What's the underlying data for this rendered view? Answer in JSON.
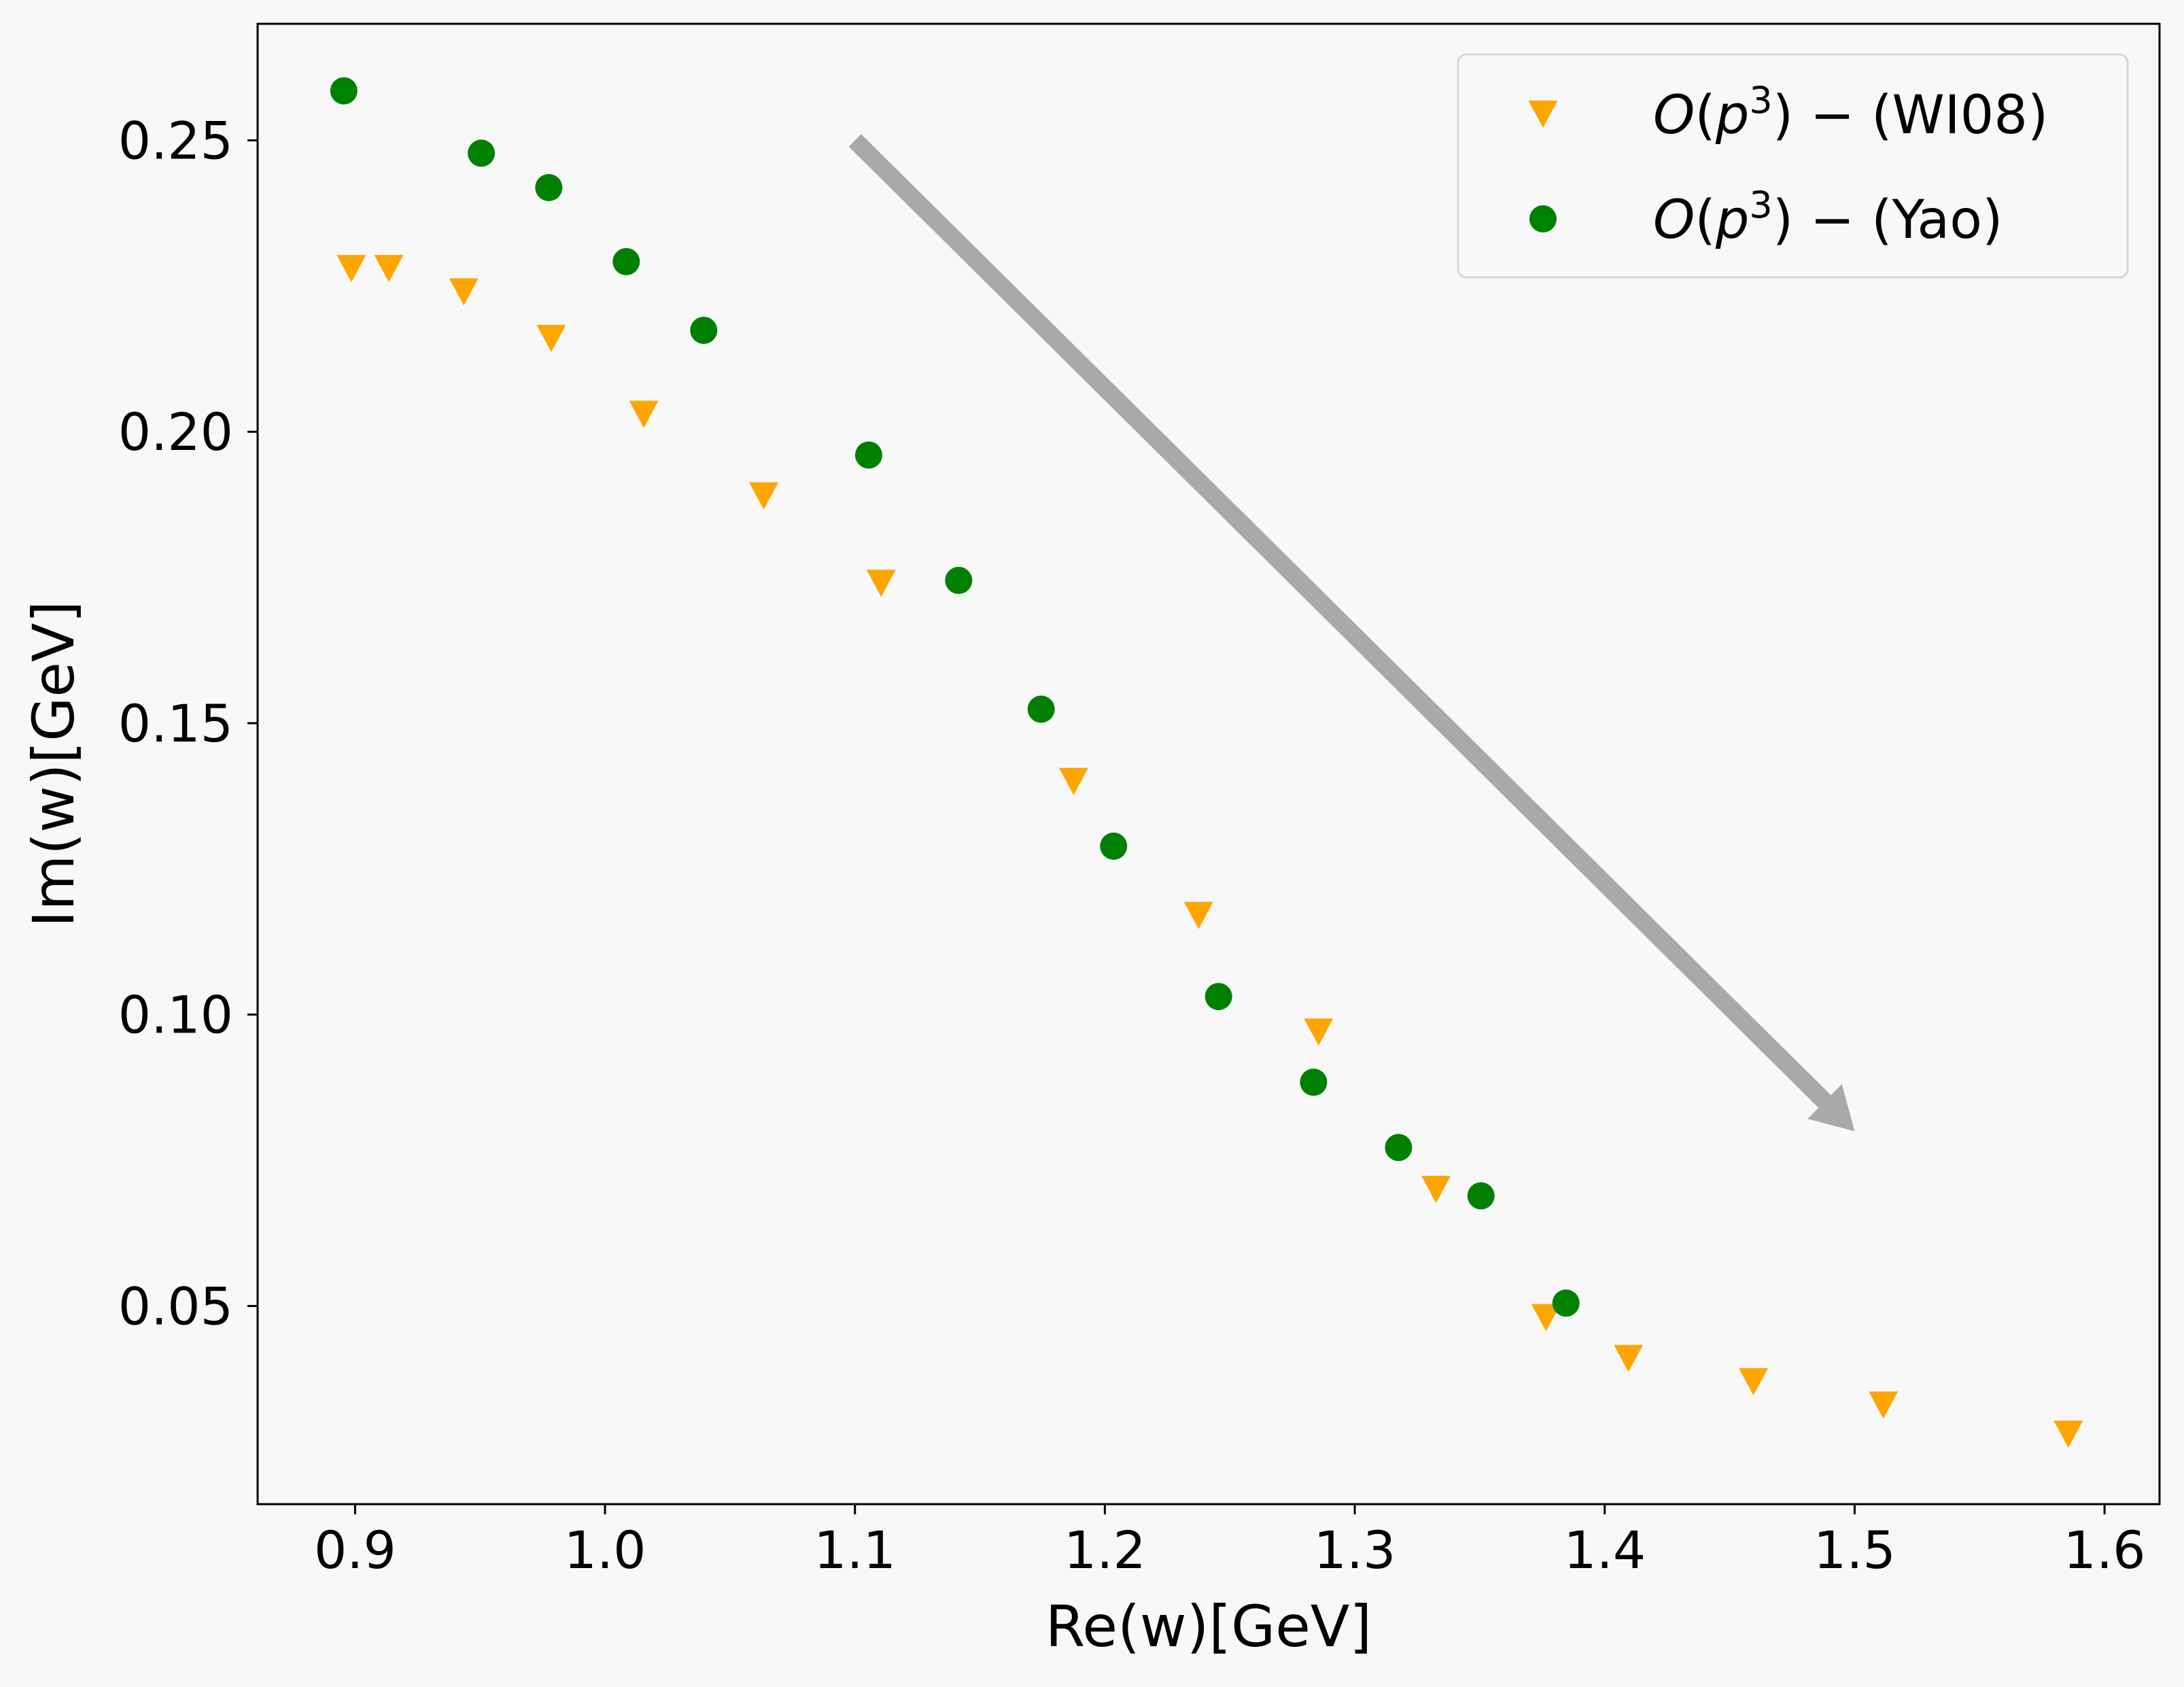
{
  "chart_data": {
    "type": "scatter",
    "title": "",
    "xlabel": "Re(w)[GeV]",
    "ylabel": "Im(w)[GeV]",
    "xlim": [
      0.861,
      1.622
    ],
    "ylim": [
      0.016,
      0.27
    ],
    "xticks": [
      0.9,
      1.0,
      1.1,
      1.2,
      1.3,
      1.4,
      1.5,
      1.6
    ],
    "xtick_labels": [
      "0.9",
      "1.0",
      "1.1",
      "1.2",
      "1.3",
      "1.4",
      "1.5",
      "1.6"
    ],
    "yticks": [
      0.05,
      0.1,
      0.15,
      0.2,
      0.25
    ],
    "ytick_labels": [
      "0.05",
      "0.10",
      "0.15",
      "0.20",
      "0.25"
    ],
    "grid": false,
    "legend_position": "top-right",
    "series": [
      {
        "name": "O(p3) − (WI08)",
        "legend": {
          "prefix": "O",
          "open": "(",
          "var": "p",
          "sup": "3",
          "close": ")",
          "rest": " − (WI08)"
        },
        "marker": "triangle-down",
        "color": "#ffa500",
        "x": [
          0.8985,
          0.9135,
          0.9435,
          0.9785,
          1.0155,
          1.0635,
          1.1105,
          1.1875,
          1.2375,
          1.2855,
          1.3325,
          1.3765,
          1.4095,
          1.4595,
          1.5115,
          1.5855
        ],
        "y": [
          0.228,
          0.228,
          0.224,
          0.216,
          0.203,
          0.189,
          0.174,
          0.14,
          0.117,
          0.097,
          0.07,
          0.048,
          0.041,
          0.037,
          0.033,
          0.028
        ]
      },
      {
        "name": "O(p3) − (Yao)",
        "legend": {
          "prefix": "O",
          "open": "(",
          "var": "p",
          "sup": "3",
          "close": ")",
          "rest": " − (Yao)"
        },
        "marker": "circle",
        "color": "#008000",
        "x": [
          0.8955,
          0.9505,
          0.9775,
          1.0085,
          1.0395,
          1.1055,
          1.1415,
          1.1745,
          1.2035,
          1.2455,
          1.2835,
          1.3175,
          1.3505,
          1.3845
        ],
        "y": [
          0.2585,
          0.2478,
          0.2419,
          0.2292,
          0.2174,
          0.196,
          0.1745,
          0.1524,
          0.1289,
          0.1031,
          0.0884,
          0.0772,
          0.0689,
          0.0505
        ]
      }
    ],
    "annotations": [
      {
        "type": "arrow",
        "color": "#a9a9a9",
        "from": [
          1.1,
          0.25
        ],
        "to": [
          1.5,
          0.08
        ]
      }
    ]
  }
}
